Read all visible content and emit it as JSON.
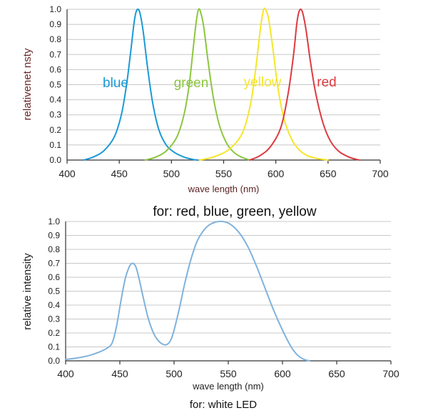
{
  "chart_data": [
    {
      "type": "line",
      "title": "",
      "caption": "for: red, blue, green, yellow",
      "xlabel": "wave length (nm)",
      "ylabel": "relativenet  nsty",
      "xlim": [
        400,
        700
      ],
      "ylim": [
        0,
        1.0
      ],
      "x_ticks": [
        "400",
        "450",
        "500",
        "550",
        "600",
        "650",
        "700"
      ],
      "y_ticks": [
        "0.0",
        "0.1",
        "0.2",
        "0.3",
        "0.4",
        "0.5",
        "0.6",
        "0.7",
        "0.8",
        "0.9",
        "1.0"
      ],
      "grid": true,
      "series": [
        {
          "name": "blue",
          "color": "#1a9ad6",
          "x": [
            416,
            425,
            435,
            445,
            452,
            457,
            461,
            464,
            466,
            468,
            470,
            473,
            477,
            482,
            488,
            495,
            503,
            512,
            520,
            525
          ],
          "y": [
            0.0,
            0.02,
            0.06,
            0.15,
            0.3,
            0.5,
            0.72,
            0.9,
            0.98,
            1.0,
            0.97,
            0.85,
            0.62,
            0.38,
            0.2,
            0.1,
            0.05,
            0.02,
            0.005,
            0.0
          ]
        },
        {
          "name": "green",
          "color": "#8cc63e",
          "x": [
            475,
            485,
            495,
            505,
            512,
            517,
            521,
            524,
            526,
            528,
            531,
            535,
            540,
            546,
            553,
            560,
            567,
            575
          ],
          "y": [
            0.0,
            0.02,
            0.06,
            0.15,
            0.3,
            0.5,
            0.75,
            0.93,
            1.0,
            0.98,
            0.88,
            0.66,
            0.42,
            0.23,
            0.11,
            0.05,
            0.02,
            0.0
          ]
        },
        {
          "name": "yellow",
          "color": "#f5e62a",
          "x": [
            527,
            540,
            555,
            568,
            576,
            581,
            585,
            588,
            590,
            593,
            597,
            602,
            608,
            615,
            622,
            630,
            640,
            650
          ],
          "y": [
            0.0,
            0.02,
            0.07,
            0.18,
            0.38,
            0.62,
            0.86,
            0.99,
            1.0,
            0.94,
            0.75,
            0.48,
            0.27,
            0.14,
            0.07,
            0.03,
            0.01,
            0.0
          ]
        },
        {
          "name": "red",
          "color": "#dd3a3f",
          "x": [
            575,
            585,
            595,
            605,
            612,
            617,
            620,
            622,
            624,
            626,
            629,
            633,
            638,
            645,
            652,
            660,
            670,
            680
          ],
          "y": [
            0.0,
            0.03,
            0.09,
            0.22,
            0.45,
            0.7,
            0.9,
            0.98,
            1.0,
            0.97,
            0.86,
            0.66,
            0.45,
            0.25,
            0.13,
            0.06,
            0.02,
            0.0
          ]
        }
      ]
    },
    {
      "type": "line",
      "title": "",
      "caption": "for: white LED",
      "xlabel": "wave length (nm)",
      "ylabel": "relative intensity",
      "xlim": [
        400,
        700
      ],
      "ylim": [
        0,
        1.0
      ],
      "x_ticks": [
        "400",
        "450",
        "500",
        "550",
        "600",
        "650",
        "700"
      ],
      "y_ticks": [
        "0.0",
        "0.1",
        "0.2",
        "0.3",
        "0.4",
        "0.5",
        "0.6",
        "0.7",
        "0.8",
        "0.9",
        "1.0"
      ],
      "grid": true,
      "series": [
        {
          "name": "",
          "color": "#7fb2dc",
          "x": [
            400,
            410,
            420,
            430,
            438,
            443,
            447,
            451,
            455,
            459,
            462,
            465,
            468,
            472,
            476,
            481,
            486,
            491,
            494,
            497,
            500,
            505,
            510,
            516,
            522,
            530,
            538,
            545,
            552,
            560,
            568,
            576,
            584,
            592,
            600,
            608,
            614,
            620,
            625
          ],
          "y": [
            0.01,
            0.02,
            0.035,
            0.06,
            0.09,
            0.13,
            0.25,
            0.43,
            0.59,
            0.68,
            0.7,
            0.67,
            0.58,
            0.44,
            0.31,
            0.2,
            0.14,
            0.115,
            0.12,
            0.15,
            0.22,
            0.38,
            0.56,
            0.74,
            0.87,
            0.96,
            0.995,
            1.0,
            0.98,
            0.92,
            0.82,
            0.68,
            0.52,
            0.36,
            0.22,
            0.1,
            0.04,
            0.01,
            0.0
          ]
        }
      ]
    }
  ]
}
